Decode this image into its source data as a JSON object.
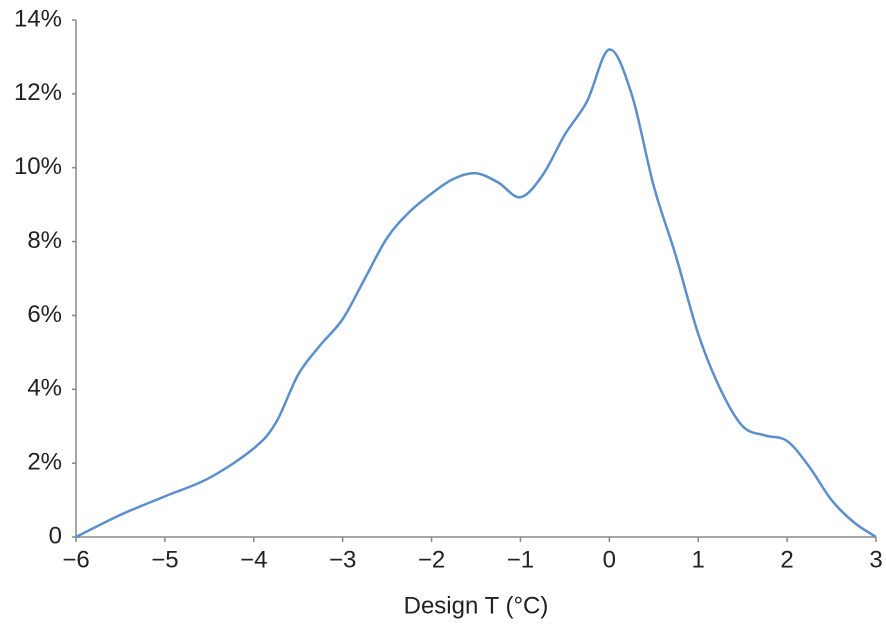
{
  "chart_data": {
    "type": "line",
    "x_label": "Design T (°C)",
    "x": [
      -6,
      -5.5,
      -5,
      -4.5,
      -4,
      -3.75,
      -3.5,
      -3.25,
      -3,
      -2.75,
      -2.5,
      -2.25,
      -2,
      -1.75,
      -1.5,
      -1.25,
      -1,
      -0.75,
      -0.5,
      -0.25,
      0,
      0.25,
      0.5,
      0.75,
      1,
      1.25,
      1.5,
      1.75,
      2,
      2.25,
      2.5,
      2.75,
      3
    ],
    "series": [
      {
        "color": "#5b8fcc",
        "values": [
          0,
          0.6,
          1.1,
          1.6,
          2.4,
          3.1,
          4.4,
          5.2,
          5.9,
          7.0,
          8.1,
          8.8,
          9.3,
          9.7,
          9.85,
          9.6,
          9.2,
          9.8,
          10.9,
          11.8,
          13.2,
          12.0,
          9.5,
          7.6,
          5.5,
          4.0,
          3.0,
          2.75,
          2.6,
          1.9,
          1.0,
          0.4,
          0
        ]
      }
    ],
    "xlim": [
      -6,
      3
    ],
    "xticks": [
      {
        "value": -6,
        "label": "−6"
      },
      {
        "value": -5,
        "label": "−5"
      },
      {
        "value": -4,
        "label": "−4"
      },
      {
        "value": -3,
        "label": "−3"
      },
      {
        "value": -2,
        "label": "−2"
      },
      {
        "value": -1,
        "label": "−1"
      },
      0,
      1,
      2,
      3
    ],
    "ylim": [
      0,
      14
    ],
    "yticks": [
      0,
      {
        "value": 2,
        "label": "2%"
      },
      {
        "value": 4,
        "label": "4%"
      },
      {
        "value": 6,
        "label": "6%"
      },
      {
        "value": 8,
        "label": "8%"
      },
      {
        "value": 10,
        "label": "10%"
      },
      {
        "value": 12,
        "label": "12%"
      },
      {
        "value": 14,
        "label": "14%"
      }
    ],
    "grid": false
  }
}
